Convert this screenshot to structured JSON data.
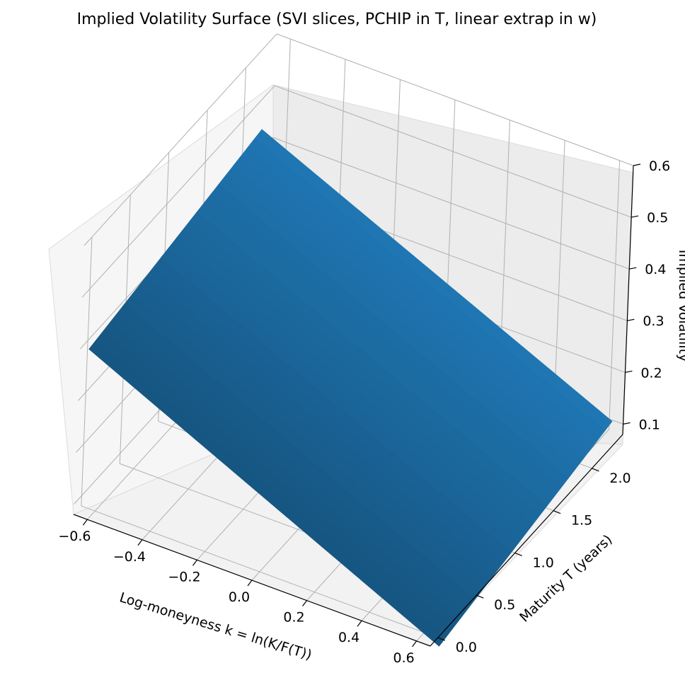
{
  "chart_data": {
    "type": "surface",
    "title": "Implied Volatility Surface (SVI slices, PCHIP in T, linear extrap in w)",
    "xlabel": "Log-moneyness k = ln(K/F(T))",
    "ylabel": "Maturity T (years)",
    "zlabel": "Implied Volatility",
    "x_ticks": [
      "−0.6",
      "−0.4",
      "−0.2",
      "0.0",
      "0.2",
      "0.4",
      "0.6"
    ],
    "y_ticks": [
      "0.0",
      "0.5",
      "1.0",
      "1.5",
      "2.0"
    ],
    "z_ticks": [
      "0.1",
      "0.2",
      "0.3",
      "0.4",
      "0.5",
      "0.6"
    ],
    "xlim": [
      -0.65,
      0.65
    ],
    "ylim": [
      -0.1,
      2.4
    ],
    "zlim": [
      0.08,
      0.6
    ],
    "grid": true,
    "colors": {
      "surface": "#1f77b4",
      "pane": "#f2f2f2",
      "grid": "#b0b0b0"
    },
    "approx_surface_corners": [
      {
        "k": -0.65,
        "T": 0.02,
        "iv": 0.38
      },
      {
        "k": -0.65,
        "T": 2.25,
        "iv": 0.44
      },
      {
        "k": 0.65,
        "T": 2.25,
        "iv": 0.13
      },
      {
        "k": 0.65,
        "T": 0.02,
        "iv": 0.06
      }
    ]
  }
}
